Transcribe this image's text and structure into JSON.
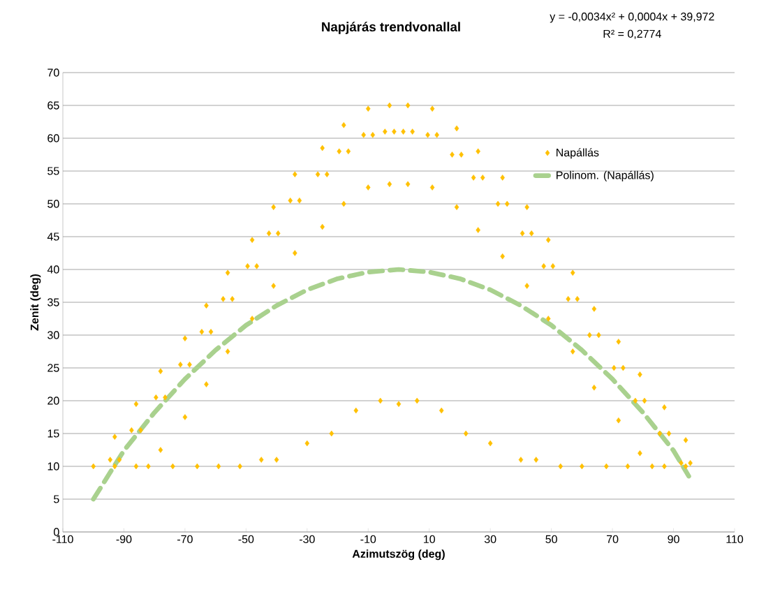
{
  "chart_data": {
    "type": "scatter",
    "title": "Napjárás trendvonallal",
    "xlabel": "Azimutszög (deg)",
    "ylabel": "Zenit (deg)",
    "annotations": [
      "y = -0,0034x² + 0,0004x + 39,972",
      "R² = 0,2774"
    ],
    "xlim": [
      -110,
      110
    ],
    "ylim": [
      0,
      70
    ],
    "xticks": [
      -110,
      -90,
      -70,
      -50,
      -30,
      -10,
      10,
      30,
      50,
      70,
      90,
      110
    ],
    "yticks": [
      0,
      5,
      10,
      15,
      20,
      25,
      30,
      35,
      40,
      45,
      50,
      55,
      60,
      65,
      70
    ],
    "grid": "y",
    "legend": "right",
    "series": [
      {
        "name": "Napállás",
        "type": "scatter",
        "color": "#ffc000",
        "marker": "diamond",
        "x": [
          -93,
          -94.5,
          -91.5,
          -93,
          -86,
          -87.5,
          -84.5,
          -86,
          -78,
          -79.5,
          -76.5,
          -78,
          -70,
          -71.5,
          -68.5,
          -70,
          -63,
          -64.5,
          -61.5,
          -63,
          -56,
          -57.5,
          -54.5,
          -56,
          -48,
          -49.5,
          -46.5,
          -48,
          -41,
          -42.5,
          -39.5,
          -41,
          -34,
          -35.5,
          -32.5,
          -34,
          -25,
          -26.5,
          -23.5,
          -25,
          -18,
          -19.5,
          -16.5,
          -18,
          -10,
          -11.5,
          -8.5,
          -10,
          -3,
          -4.5,
          -1.5,
          -3,
          3,
          1.5,
          4.5,
          3,
          11,
          9.5,
          12.5,
          11,
          19,
          17.5,
          20.5,
          19,
          26,
          24.5,
          27.5,
          26,
          34,
          32.5,
          35.5,
          34,
          42,
          40.5,
          43.5,
          42,
          49,
          47.5,
          50.5,
          49,
          57,
          55.5,
          58.5,
          57,
          64,
          62.5,
          65.5,
          64,
          72,
          70.5,
          73.5,
          72,
          79,
          77.5,
          80.5,
          79,
          87,
          85.5,
          88.5,
          87,
          94,
          92.5,
          95.5,
          94,
          -100,
          -82,
          -74,
          -66,
          -59,
          -52,
          -45,
          -40,
          -30,
          -22,
          -14,
          -6,
          0,
          6,
          14,
          22,
          30,
          40,
          45,
          53,
          60,
          68,
          75,
          83
        ],
        "values": [
          14.5,
          11,
          11,
          10,
          19.5,
          15.5,
          15.5,
          10,
          24.5,
          20.5,
          20.5,
          12.5,
          29.5,
          25.5,
          25.5,
          17.5,
          34.5,
          30.5,
          30.5,
          22.5,
          39.5,
          35.5,
          35.5,
          27.5,
          44.5,
          40.5,
          40.5,
          32.5,
          49.5,
          45.5,
          45.5,
          37.5,
          54.5,
          50.5,
          50.5,
          42.5,
          58.5,
          54.5,
          54.5,
          46.5,
          62,
          58,
          58,
          50,
          64.5,
          60.5,
          60.5,
          52.5,
          65,
          61,
          61,
          53,
          65,
          61,
          61,
          53,
          64.5,
          60.5,
          60.5,
          52.5,
          61.5,
          57.5,
          57.5,
          49.5,
          58,
          54,
          54,
          46,
          54,
          50,
          50,
          42,
          49.5,
          45.5,
          45.5,
          37.5,
          44.5,
          40.5,
          40.5,
          32.5,
          39.5,
          35.5,
          35.5,
          27.5,
          34,
          30,
          30,
          22,
          29,
          25,
          25,
          17,
          24,
          20,
          20,
          12,
          19,
          15,
          15,
          10,
          14,
          10.5,
          10.5,
          10,
          10,
          10,
          10,
          10,
          10,
          10,
          11,
          11,
          13.5,
          15,
          18.5,
          20,
          19.5,
          20,
          18.5,
          15,
          13.5,
          11,
          11,
          10,
          10,
          10,
          10,
          10
        ]
      },
      {
        "name": "Polinom. (Napállás)",
        "type": "line",
        "color": "#a9d18e",
        "line_style": "dashed",
        "marker": "none",
        "x": [
          -100,
          -90,
          -80,
          -70,
          -60,
          -50,
          -40,
          -30,
          -20,
          -10,
          0,
          10,
          20,
          30,
          40,
          50,
          60,
          70,
          80,
          90,
          95
        ],
        "values": [
          5,
          12.4,
          18.2,
          23.3,
          27.7,
          31.5,
          34.5,
          36.9,
          38.6,
          39.6,
          40,
          39.6,
          38.6,
          36.9,
          34.5,
          31.5,
          27.7,
          23.3,
          18.2,
          12.4,
          8.5
        ]
      }
    ]
  }
}
